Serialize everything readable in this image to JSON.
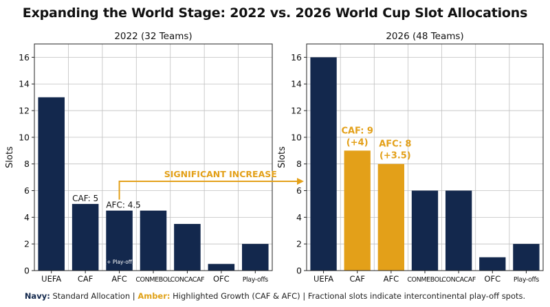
{
  "title": "Expanding the World Stage: 2022 vs. 2026 World Cup Slot Allocations",
  "colors": {
    "navy": "#13284d",
    "amber": "#e3a019",
    "grid": "#bfbfbf"
  },
  "chart_data": [
    {
      "type": "bar",
      "title": "2022 (32 Teams)",
      "ylabel": "Slots",
      "ylim": [
        0,
        17
      ],
      "yticks": [
        0,
        2,
        4,
        6,
        8,
        10,
        12,
        14,
        16
      ],
      "grid": true,
      "categories": [
        "UEFA",
        "CAF",
        "AFC",
        "CONMEBOL",
        "CONCACAF",
        "OFC",
        "Play-offs"
      ],
      "values": [
        13,
        5,
        4.5,
        4.5,
        3.5,
        0.5,
        2
      ],
      "highlight": [
        false,
        false,
        false,
        false,
        false,
        false,
        false
      ],
      "annotations": [
        {
          "category": "CAF",
          "lines": [
            "CAF: 5"
          ],
          "style": "plain"
        },
        {
          "category": "AFC",
          "lines": [
            "AFC: 4.5"
          ],
          "style": "plain",
          "inner_note": "(+ Play-off)"
        }
      ]
    },
    {
      "type": "bar",
      "title": "2026 (48 Teams)",
      "ylabel": "Slots",
      "ylim": [
        0,
        17
      ],
      "yticks": [
        0,
        2,
        4,
        6,
        8,
        10,
        12,
        14,
        16
      ],
      "grid": true,
      "categories": [
        "UEFA",
        "CAF",
        "AFC",
        "CONMEBOL",
        "CONCACAF",
        "OFC",
        "Play-offs"
      ],
      "values": [
        16,
        9,
        8,
        6,
        6,
        1,
        2
      ],
      "highlight": [
        false,
        true,
        true,
        false,
        false,
        false,
        false
      ],
      "annotations": [
        {
          "category": "CAF",
          "lines": [
            "CAF: 9",
            "(+4)"
          ],
          "style": "amber"
        },
        {
          "category": "AFC",
          "lines": [
            "AFC: 8",
            "(+3.5)"
          ],
          "style": "amber"
        }
      ]
    }
  ],
  "arrow_label": "SIGNIFICANT INCREASE",
  "footer": {
    "navy_label": "Navy:",
    "navy_text": " Standard Allocation | ",
    "amber_label": "Amber:",
    "amber_text": " Highlighted Growth (CAF & AFC) | Fractional slots indicate intercontinental play-off spots."
  }
}
